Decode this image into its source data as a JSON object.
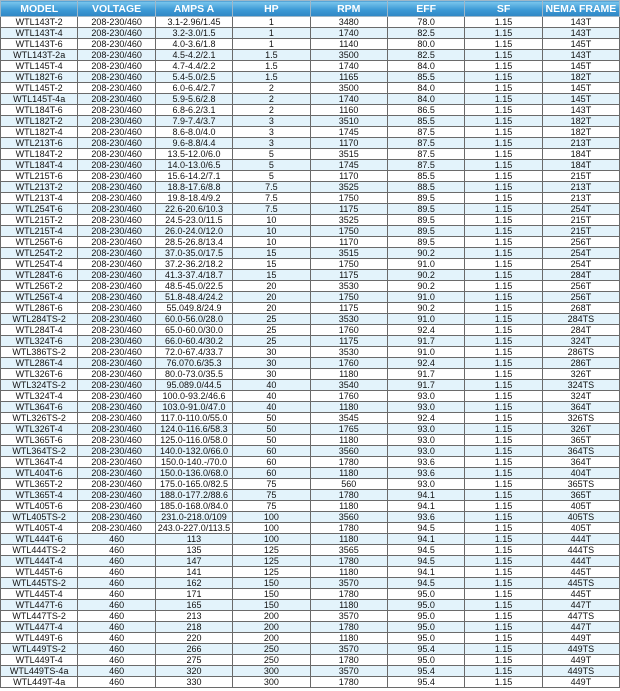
{
  "colors": {
    "header": "#3d9ad6",
    "row_alt": "#e3f3fb"
  },
  "headers": [
    "MODEL",
    "VOLTAGE",
    "AMPS A",
    "HP",
    "RPM",
    "EFF",
    "SF",
    "NEMA FRAME"
  ],
  "rows": [
    [
      "WTL143T-2",
      "208-230/460",
      "3.1-2.96/1.45",
      "1",
      "3480",
      "78.0",
      "1.15",
      "143T"
    ],
    [
      "WTL143T-4",
      "208-230/460",
      "3.2-3.0/1.5",
      "1",
      "1740",
      "82.5",
      "1.15",
      "143T"
    ],
    [
      "WTL143T-6",
      "208-230/460",
      "4.0-3.6/1.8",
      "1",
      "1140",
      "80.0",
      "1.15",
      "145T"
    ],
    [
      "WTL143T-2a",
      "208-230/460",
      "4.5-4.2/2.1",
      "1.5",
      "3500",
      "82.5",
      "1.15",
      "143T"
    ],
    [
      "WTL145T-4",
      "208-230/460",
      "4.7-4.4/2.2",
      "1.5",
      "1740",
      "84.0",
      "1.15",
      "145T"
    ],
    [
      "WTL182T-6",
      "208-230/460",
      "5.4-5.0/2.5",
      "1.5",
      "1165",
      "85.5",
      "1.15",
      "182T"
    ],
    [
      "WTL145T-2",
      "208-230/460",
      "6.0-6.4/2.7",
      "2",
      "3500",
      "84.0",
      "1.15",
      "145T"
    ],
    [
      "WTL145T-4a",
      "208-230/460",
      "5.9-5.6/2.8",
      "2",
      "1740",
      "84.0",
      "1.15",
      "145T"
    ],
    [
      "WTL184T-6",
      "208-230/460",
      "6.8-6.2/3.1",
      "2",
      "1160",
      "86.5",
      "1.15",
      "143T"
    ],
    [
      "WTL182T-2",
      "208-230/460",
      "7.9-7.4/3.7",
      "3",
      "3510",
      "85.5",
      "1.15",
      "182T"
    ],
    [
      "WTL182T-4",
      "208-230/460",
      "8.6-8.0/4.0",
      "3",
      "1745",
      "87.5",
      "1.15",
      "182T"
    ],
    [
      "WTL213T-6",
      "208-230/460",
      "9.6-8.8/4.4",
      "3",
      "1170",
      "87.5",
      "1.15",
      "213T"
    ],
    [
      "WTL184T-2",
      "208-230/460",
      "13.5-12.0/6.0",
      "5",
      "3515",
      "87.5",
      "1.15",
      "184T"
    ],
    [
      "WTL184T-4",
      "208-230/460",
      "14.0-13.0/6.5",
      "5",
      "1745",
      "87.5",
      "1.15",
      "184T"
    ],
    [
      "WTL215T-6",
      "208-230/460",
      "15.6-14.2/7.1",
      "5",
      "1170",
      "85.5",
      "1.15",
      "215T"
    ],
    [
      "WTL213T-2",
      "208-230/460",
      "18.8-17.6/8.8",
      "7.5",
      "3525",
      "88.5",
      "1.15",
      "213T"
    ],
    [
      "WTL213T-4",
      "208-230/460",
      "19.8-18.4/9.2",
      "7.5",
      "1750",
      "89.5",
      "1.15",
      "213T"
    ],
    [
      "WTL254T-6",
      "208-230/460",
      "22.6-20.6/10.3",
      "7.5",
      "1175",
      "89.5",
      "1.15",
      "254T"
    ],
    [
      "WTL215T-2",
      "208-230/460",
      "24.5-23.0/11.5",
      "10",
      "3525",
      "89.5",
      "1.15",
      "215T"
    ],
    [
      "WTL215T-4",
      "208-230/460",
      "26.0-24.0/12.0",
      "10",
      "1750",
      "89.5",
      "1.15",
      "215T"
    ],
    [
      "WTL256T-6",
      "208-230/460",
      "28.5-26.8/13.4",
      "10",
      "1170",
      "89.5",
      "1.15",
      "256T"
    ],
    [
      "WTL254T-2",
      "208-230/460",
      "37.0-35.0/17.5",
      "15",
      "3515",
      "90.2",
      "1.15",
      "254T"
    ],
    [
      "WTL254T-4",
      "208-230/460",
      "37.2-36.2/18.2",
      "15",
      "1750",
      "91.0",
      "1.15",
      "254T"
    ],
    [
      "WTL284T-6",
      "208-230/460",
      "41.3-37.4/18.7",
      "15",
      "1175",
      "90.2",
      "1.15",
      "284T"
    ],
    [
      "WTL256T-2",
      "208-230/460",
      "48.5-45.0/22.5",
      "20",
      "3530",
      "90.2",
      "1.15",
      "256T"
    ],
    [
      "WTL256T-4",
      "208-230/460",
      "51.8-48.4/24.2",
      "20",
      "1750",
      "91.0",
      "1.15",
      "256T"
    ],
    [
      "WTL286T-6",
      "208-230/460",
      "55.049.8/24.9",
      "20",
      "1175",
      "90.2",
      "1.15",
      "268T"
    ],
    [
      "WTL284TS-2",
      "208-230/460",
      "60.0-56.0/28.0",
      "25",
      "3530",
      "91.0",
      "1.15",
      "284TS"
    ],
    [
      "WTL284T-4",
      "208-230/460",
      "65.0-60.0/30.0",
      "25",
      "1760",
      "92.4",
      "1.15",
      "284T"
    ],
    [
      "WTL324T-6",
      "208-230/460",
      "66.0-60.4/30.2",
      "25",
      "1175",
      "91.7",
      "1.15",
      "324T"
    ],
    [
      "WTL386TS-2",
      "208-230/460",
      "72.0-67.4/33.7",
      "30",
      "3530",
      "91.0",
      "1.15",
      "286TS"
    ],
    [
      "WTL286T-4",
      "208-230/460",
      "76.070.6/35.3",
      "30",
      "1760",
      "92.4",
      "1.15",
      "286T"
    ],
    [
      "WTL326T-6",
      "208-230/460",
      "80.0-73.0/35.5",
      "30",
      "1180",
      "91.7",
      "1.15",
      "326T"
    ],
    [
      "WTL324TS-2",
      "208-230/460",
      "95.089.0/44.5",
      "40",
      "3540",
      "91.7",
      "1.15",
      "324TS"
    ],
    [
      "WTL324T-4",
      "208-230/460",
      "100.0-93.2/46.6",
      "40",
      "1760",
      "93.0",
      "1.15",
      "324T"
    ],
    [
      "WTL364T-6",
      "208-230/460",
      "103.0-91.0/47.0",
      "40",
      "1180",
      "93.0",
      "1.15",
      "364T"
    ],
    [
      "WTL326TS-2",
      "208-230/460",
      "117.0-110.0/55.0",
      "50",
      "3545",
      "92.4",
      "1.15",
      "326TS"
    ],
    [
      "WTL326T-4",
      "208-230/460",
      "124.0-116.6/58.3",
      "50",
      "1765",
      "93.0",
      "1.15",
      "326T"
    ],
    [
      "WTL365T-6",
      "208-230/460",
      "125.0-116.0/58.0",
      "50",
      "1180",
      "93.0",
      "1.15",
      "365T"
    ],
    [
      "WTL364TS-2",
      "208-230/460",
      "140.0-132.0/66.0",
      "60",
      "3560",
      "93.0",
      "1.15",
      "364TS"
    ],
    [
      "WTL364T-4",
      "208-230/460",
      "150.0-140.-/70.0",
      "60",
      "1780",
      "93.6",
      "1.15",
      "364T"
    ],
    [
      "WTL404T-6",
      "208-230/460",
      "150.0-136.0/68.0",
      "60",
      "1180",
      "93.6",
      "1.15",
      "404T"
    ],
    [
      "WTL365T-2",
      "208-230/460",
      "175.0-165.0/82.5",
      "75",
      "560",
      "93.0",
      "1.15",
      "365TS"
    ],
    [
      "WTL365T-4",
      "208-230/460",
      "188.0-177.2/88.6",
      "75",
      "1780",
      "94.1",
      "1.15",
      "365T"
    ],
    [
      "WTL405T-6",
      "208-230/460",
      "185.0-168.0/84.0",
      "75",
      "1180",
      "94.1",
      "1.15",
      "405T"
    ],
    [
      "WTL405TS-2",
      "208-230/460",
      "231.0-218.0/109",
      "100",
      "3560",
      "93.6",
      "1.15",
      "405TS"
    ],
    [
      "WTL405T-4",
      "208-230/460",
      "243.0-227.0/113.5",
      "100",
      "1780",
      "94.5",
      "1.15",
      "405T"
    ],
    [
      "WTL444T-6",
      "460",
      "113",
      "100",
      "1180",
      "94.1",
      "1.15",
      "444T"
    ],
    [
      "WTL444TS-2",
      "460",
      "135",
      "125",
      "3565",
      "94.5",
      "1.15",
      "444TS"
    ],
    [
      "WTL444T-4",
      "460",
      "147",
      "125",
      "1780",
      "94.5",
      "1.15",
      "444T"
    ],
    [
      "WTL445T-6",
      "460",
      "141",
      "125",
      "1180",
      "94.1",
      "1.15",
      "445T"
    ],
    [
      "WTL445TS-2",
      "460",
      "162",
      "150",
      "3570",
      "94.5",
      "1.15",
      "445TS"
    ],
    [
      "WTL445T-4",
      "460",
      "171",
      "150",
      "1780",
      "95.0",
      "1.15",
      "445T"
    ],
    [
      "WTL447T-6",
      "460",
      "165",
      "150",
      "1180",
      "95.0",
      "1.15",
      "447T"
    ],
    [
      "WTL447TS-2",
      "460",
      "213",
      "200",
      "3570",
      "95.0",
      "1.15",
      "447TS"
    ],
    [
      "WTL447T-4",
      "460",
      "218",
      "200",
      "1780",
      "95.0",
      "1.15",
      "447T"
    ],
    [
      "WTL449T-6",
      "460",
      "220",
      "200",
      "1180",
      "95.0",
      "1.15",
      "449T"
    ],
    [
      "WTL449TS-2",
      "460",
      "266",
      "250",
      "3570",
      "95.4",
      "1.15",
      "449TS"
    ],
    [
      "WTL449T-4",
      "460",
      "275",
      "250",
      "1780",
      "95.0",
      "1.15",
      "449T"
    ],
    [
      "WTL449TS-4a",
      "460",
      "320",
      "300",
      "3570",
      "95.4",
      "1.15",
      "449TS"
    ],
    [
      "WTL449T-4a",
      "460",
      "330",
      "300",
      "1780",
      "95.4",
      "1.15",
      "449T"
    ]
  ]
}
